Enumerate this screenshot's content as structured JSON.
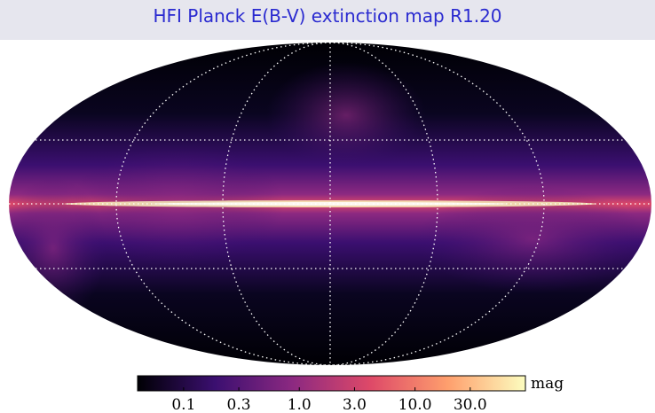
{
  "header": {
    "title": "HFI Planck E(B-V) extinction map R1.20"
  },
  "colorbar": {
    "label": "mag",
    "scale": "log",
    "lim": [
      0.04,
      90
    ],
    "ticks": [
      0.1,
      0.3,
      {
        "value": 1,
        "label": "1.0"
      },
      {
        "value": 3,
        "label": "3.0"
      },
      {
        "value": 10,
        "label": "10.0"
      },
      {
        "value": 30,
        "label": "30.0"
      }
    ],
    "colors": [
      "#000004",
      "#3b0f70",
      "#8c2981",
      "#de4968",
      "#fe9f6d",
      "#fcfdbf"
    ]
  }
}
